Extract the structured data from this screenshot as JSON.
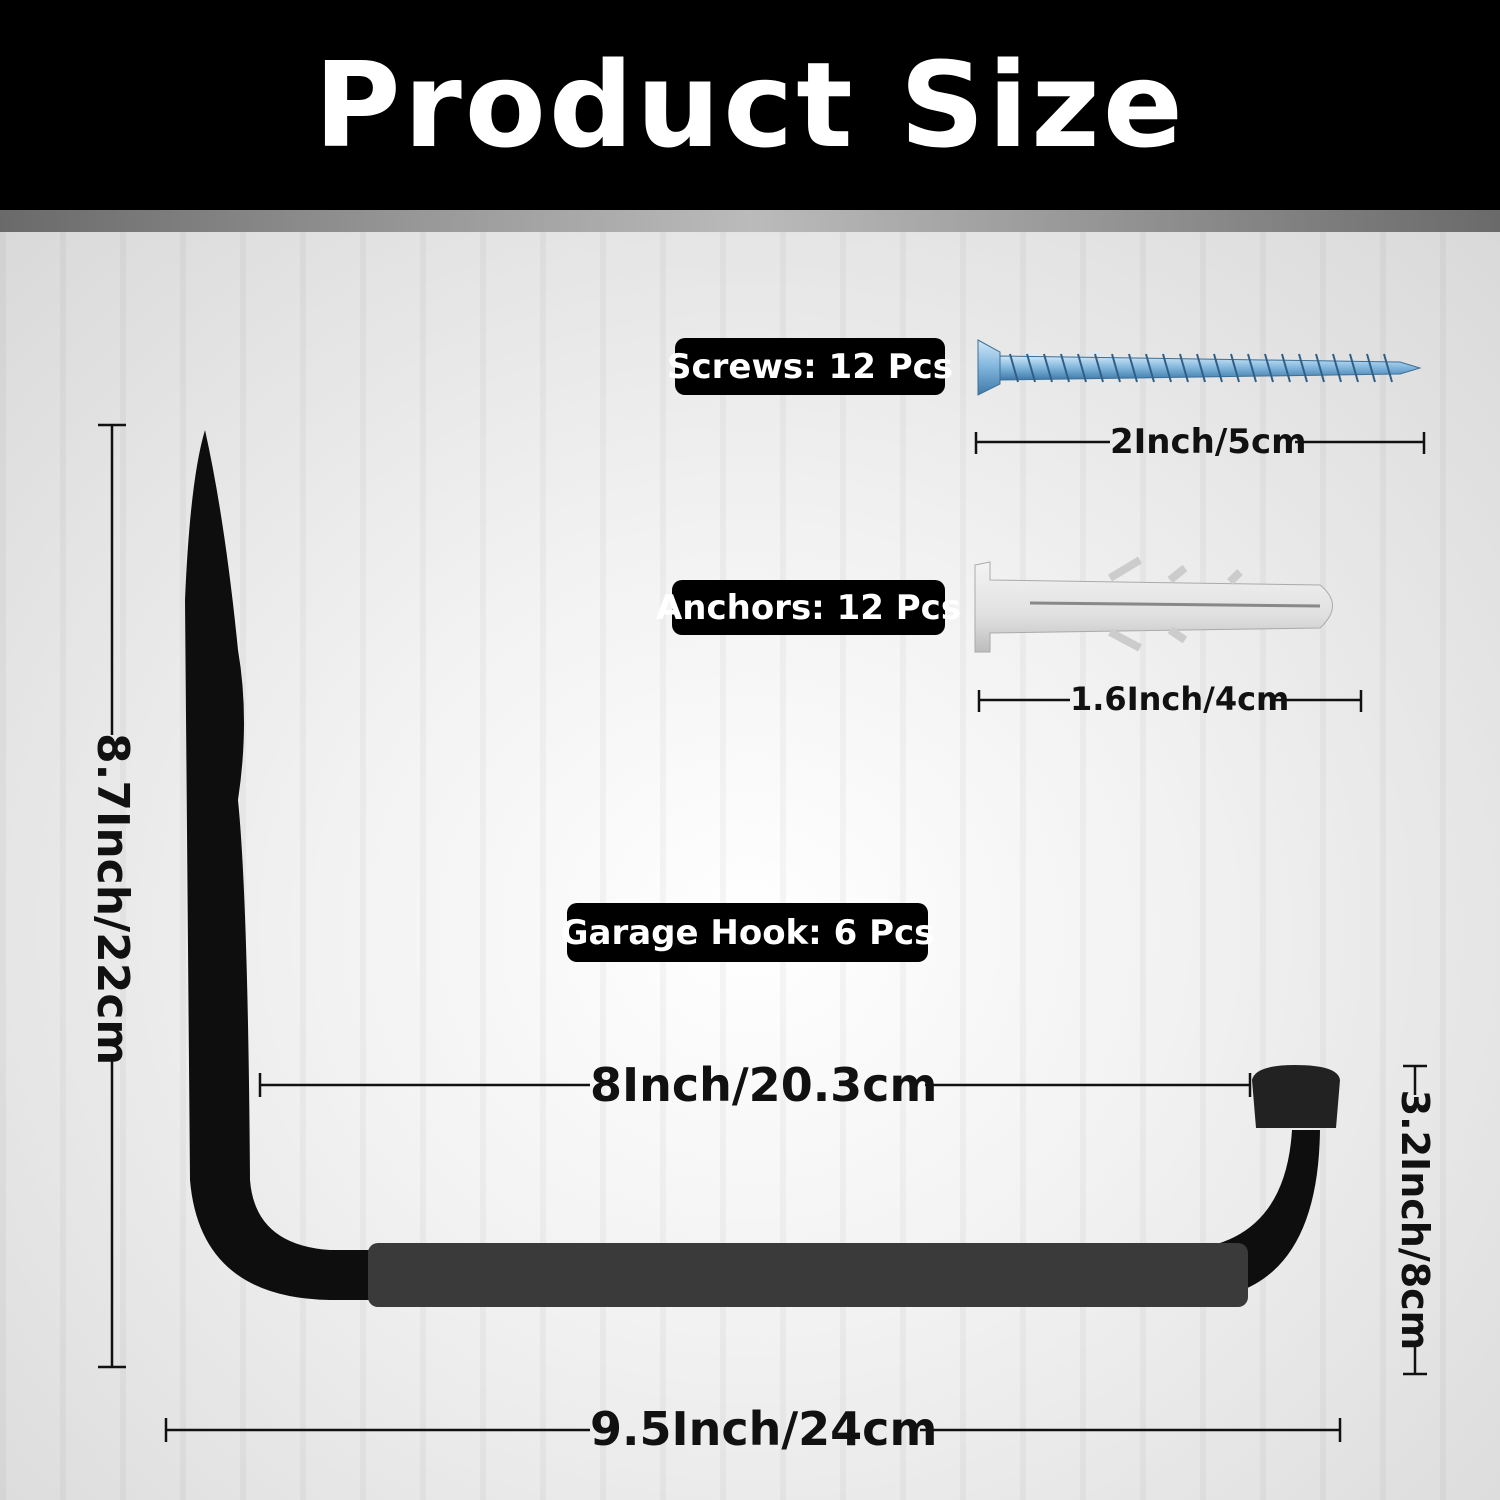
{
  "title": "Product Size",
  "items": {
    "screws": {
      "label": "Screws: 12 Pcs",
      "dimension": "2Inch/5cm",
      "icon": "screw-icon"
    },
    "anchors": {
      "label": "Anchors: 12 Pcs",
      "dimension": "1.6Inch/4cm",
      "icon": "wall-anchor-icon"
    },
    "hook": {
      "label": "Garage Hook: 6 Pcs",
      "icon": "garage-hook-icon"
    }
  },
  "dimensions": {
    "height": "8.7Inch/22cm",
    "inner_width": "8Inch/20.3cm",
    "depth": "3.2Inch/8cm",
    "total_width": "9.5Inch/24cm"
  },
  "colors": {
    "header": "#000000",
    "badge": "#000000",
    "screw": "#8fc3e6",
    "anchor": "#e4e4e4",
    "hook": "#111111"
  }
}
